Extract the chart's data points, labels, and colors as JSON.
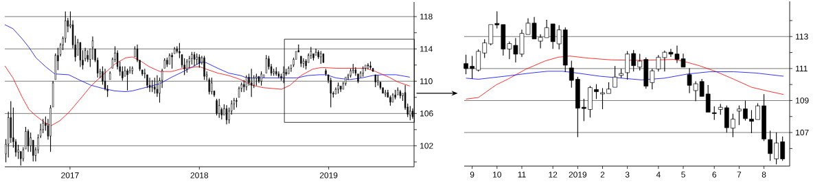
{
  "chart_data": [
    {
      "type": "candlestick",
      "x": [
        "2016-07-04",
        "2016-07-11",
        "2016-07-18",
        "2016-07-25",
        "2016-08-01",
        "2016-08-08",
        "2016-08-15",
        "2016-08-22",
        "2016-08-29",
        "2016-09-05",
        "2016-09-12",
        "2016-09-19",
        "2016-09-26",
        "2016-10-03",
        "2016-10-10",
        "2016-10-17",
        "2016-10-24",
        "2016-10-31",
        "2016-11-07",
        "2016-11-14",
        "2016-11-21",
        "2016-11-28",
        "2016-12-05",
        "2016-12-12",
        "2016-12-19",
        "2016-12-26",
        "2017-01-02",
        "2017-01-09",
        "2017-01-16",
        "2017-01-23",
        "2017-01-30",
        "2017-02-06",
        "2017-02-13",
        "2017-02-20",
        "2017-02-27",
        "2017-03-06",
        "2017-03-13",
        "2017-03-20",
        "2017-03-27",
        "2017-04-03",
        "2017-04-10",
        "2017-04-17",
        "2017-04-24",
        "2017-05-01",
        "2017-05-08",
        "2017-05-15",
        "2017-05-22",
        "2017-05-29",
        "2017-06-05",
        "2017-06-12",
        "2017-06-19",
        "2017-06-26",
        "2017-07-03",
        "2017-07-10",
        "2017-07-17",
        "2017-07-24",
        "2017-07-31",
        "2017-08-07",
        "2017-08-14",
        "2017-08-21",
        "2017-08-28",
        "2017-09-04",
        "2017-09-11",
        "2017-09-18",
        "2017-09-25",
        "2017-10-02",
        "2017-10-09",
        "2017-10-16",
        "2017-10-23",
        "2017-10-30",
        "2017-11-06",
        "2017-11-13",
        "2017-11-20",
        "2017-11-27",
        "2017-12-04",
        "2017-12-11",
        "2017-12-18",
        "2017-12-25",
        "2018-01-01",
        "2018-01-08",
        "2018-01-15",
        "2018-01-22",
        "2018-01-29",
        "2018-02-05",
        "2018-02-12",
        "2018-02-19",
        "2018-02-26",
        "2018-03-05",
        "2018-03-12",
        "2018-03-19",
        "2018-03-26",
        "2018-04-02",
        "2018-04-09",
        "2018-04-16",
        "2018-04-23",
        "2018-04-30",
        "2018-05-07",
        "2018-05-14",
        "2018-05-21",
        "2018-05-28",
        "2018-06-04",
        "2018-06-11",
        "2018-06-18",
        "2018-06-25",
        "2018-07-02",
        "2018-07-09",
        "2018-07-16",
        "2018-07-23",
        "2018-07-30",
        "2018-08-06",
        "2018-08-13",
        "2018-08-20",
        "2018-08-27",
        "2018-09-03",
        "2018-09-10",
        "2018-09-17",
        "2018-09-24",
        "2018-10-01",
        "2018-10-08",
        "2018-10-15",
        "2018-10-22",
        "2018-10-29",
        "2018-11-05",
        "2018-11-12",
        "2018-11-19",
        "2018-11-26",
        "2018-12-03",
        "2018-12-10",
        "2018-12-17",
        "2018-12-24",
        "2018-12-31",
        "2019-01-07",
        "2019-01-14",
        "2019-01-21",
        "2019-01-28",
        "2019-02-04",
        "2019-02-11",
        "2019-02-18",
        "2019-02-25",
        "2019-03-04",
        "2019-03-11",
        "2019-03-18",
        "2019-03-25",
        "2019-04-01",
        "2019-04-08",
        "2019-04-15",
        "2019-04-22",
        "2019-04-29",
        "2019-05-06",
        "2019-05-13",
        "2019-05-20",
        "2019-05-27",
        "2019-06-03",
        "2019-06-10",
        "2019-06-17",
        "2019-06-24",
        "2019-07-01",
        "2019-07-08",
        "2019-07-15",
        "2019-07-22",
        "2019-07-29",
        "2019-08-05",
        "2019-08-12",
        "2019-08-19",
        "2019-08-26"
      ],
      "ohlc": [
        [
          101.0,
          102.8,
          100.0,
          102.2
        ],
        [
          102.2,
          106.2,
          100.6,
          105.5
        ],
        [
          105.5,
          107.5,
          102.4,
          103.0
        ],
        [
          103.0,
          106.7,
          101.8,
          102.5
        ],
        [
          102.5,
          102.8,
          100.7,
          101.2
        ],
        [
          101.2,
          102.1,
          100.4,
          101.5
        ],
        [
          101.3,
          101.4,
          99.6,
          100.4
        ],
        [
          100.4,
          101.8,
          100.1,
          101.5
        ],
        [
          101.6,
          104.3,
          101.6,
          103.8
        ],
        [
          103.8,
          104.0,
          101.3,
          102.0
        ],
        [
          102.0,
          103.6,
          101.3,
          103.0
        ],
        [
          102.7,
          102.7,
          100.1,
          100.8
        ],
        [
          100.8,
          101.8,
          100.1,
          101.5
        ],
        [
          101.5,
          103.4,
          101.1,
          103.0
        ],
        [
          103.2,
          104.7,
          103.0,
          104.0
        ],
        [
          104.0,
          105.3,
          103.6,
          104.8
        ],
        [
          104.8,
          105.6,
          103.9,
          104.5
        ],
        [
          104.5,
          105.3,
          102.8,
          103.2
        ],
        [
          103.2,
          107.0,
          101.3,
          106.7
        ],
        [
          106.8,
          110.0,
          106.8,
          109.8
        ],
        [
          110.2,
          113.4,
          110.2,
          113.2
        ],
        [
          113.2,
          114.1,
          111.4,
          112.5
        ],
        [
          113.3,
          114.7,
          113.1,
          114.5
        ],
        [
          114.5,
          115.5,
          113.9,
          115.3
        ],
        [
          115.3,
          118.6,
          114.8,
          117.5
        ],
        [
          117.5,
          117.8,
          116.1,
          116.8
        ],
        [
          116.8,
          118.6,
          116.6,
          117.0
        ],
        [
          117.0,
          117.5,
          114.1,
          114.5
        ],
        [
          114.5,
          115.6,
          112.5,
          113.0
        ],
        [
          113.2,
          115.2,
          113.2,
          114.8
        ],
        [
          114.8,
          114.9,
          111.8,
          112.6
        ],
        [
          112.6,
          113.8,
          111.5,
          112.0
        ],
        [
          112.8,
          114.1,
          112.5,
          113.8
        ],
        [
          113.2,
          113.8,
          112.4,
          112.7
        ],
        [
          112.7,
          114.1,
          111.8,
          114.0
        ],
        [
          114.2,
          115.5,
          112.7,
          115.0
        ],
        [
          114.0,
          114.1,
          112.4,
          112.6
        ],
        [
          112.6,
          112.9,
          110.5,
          111.0
        ],
        [
          111.0,
          111.5,
          110.4,
          111.2
        ],
        [
          111.2,
          111.8,
          109.6,
          110.0
        ],
        [
          110.0,
          111.5,
          108.9,
          109.1
        ],
        [
          109.0,
          109.5,
          108.1,
          108.8
        ],
        [
          110.2,
          111.2,
          110.1,
          111.0
        ],
        [
          111.6,
          112.9,
          111.5,
          112.7
        ],
        [
          112.7,
          114.3,
          112.4,
          113.5
        ],
        [
          113.5,
          113.8,
          111.5,
          111.8
        ],
        [
          111.8,
          112.4,
          110.7,
          111.2
        ],
        [
          111.2,
          111.8,
          110.1,
          110.4
        ],
        [
          110.6,
          111.8,
          110.6,
          111.3
        ],
        [
          111.3,
          111.5,
          108.9,
          110.8
        ],
        [
          111.0,
          111.8,
          110.9,
          111.3
        ],
        [
          111.3,
          111.8,
          110.9,
          111.6
        ],
        [
          113.0,
          114.3,
          112.9,
          114.0
        ],
        [
          114.0,
          114.5,
          112.4,
          112.6
        ],
        [
          112.6,
          112.7,
          111.3,
          111.5
        ],
        [
          111.4,
          111.5,
          110.7,
          110.9
        ],
        [
          110.9,
          111.5,
          110.4,
          111.0
        ],
        [
          110.8,
          110.9,
          109.2,
          109.5
        ],
        [
          109.5,
          110.4,
          108.7,
          109.2
        ],
        [
          109.2,
          110.1,
          108.7,
          109.3
        ],
        [
          109.3,
          110.4,
          108.5,
          109.0
        ],
        [
          109.0,
          110.7,
          108.1,
          108.5
        ],
        [
          108.5,
          110.4,
          107.4,
          110.1
        ],
        [
          110.1,
          111.5,
          109.2,
          111.3
        ],
        [
          111.6,
          112.8,
          111.5,
          112.6
        ],
        [
          112.6,
          112.9,
          111.8,
          112.1
        ],
        [
          112.1,
          113.4,
          112.1,
          113.2
        ],
        [
          113.2,
          113.5,
          111.6,
          113.0
        ],
        [
          113.4,
          114.2,
          113.3,
          114.0
        ],
        [
          114.0,
          114.3,
          113.5,
          113.7
        ],
        [
          113.7,
          114.7,
          112.9,
          113.5
        ],
        [
          113.3,
          113.4,
          111.7,
          112.0
        ],
        [
          112.0,
          112.8,
          110.8,
          111.5
        ],
        [
          111.5,
          112.7,
          111.1,
          112.4
        ],
        [
          112.4,
          113.1,
          111.7,
          112.8
        ],
        [
          112.8,
          113.6,
          112.1,
          113.3
        ],
        [
          113.3,
          113.6,
          111.9,
          112.7
        ],
        [
          112.7,
          113.4,
          112.1,
          113.0
        ],
        [
          113.0,
          113.3,
          111.7,
          112.2
        ],
        [
          112.3,
          113.1,
          112.1,
          112.9
        ],
        [
          112.9,
          113.1,
          110.2,
          110.6
        ],
        [
          110.6,
          111.2,
          110.1,
          110.8
        ],
        [
          110.2,
          110.4,
          108.4,
          108.7
        ],
        [
          108.7,
          110.4,
          108.4,
          109.8
        ],
        [
          108.8,
          108.9,
          108.1,
          108.3
        ],
        [
          107.6,
          107.8,
          105.8,
          106.0
        ],
        [
          106.0,
          107.8,
          105.5,
          107.0
        ],
        [
          106.5,
          106.7,
          105.3,
          105.8
        ],
        [
          105.8,
          107.1,
          105.7,
          106.6
        ],
        [
          106.6,
          107.0,
          104.7,
          105.2
        ],
        [
          105.2,
          106.7,
          104.8,
          106.3
        ],
        [
          106.3,
          107.6,
          105.9,
          107.2
        ],
        [
          107.2,
          107.9,
          106.5,
          107.6
        ],
        [
          107.6,
          107.9,
          106.8,
          107.5
        ],
        [
          108.0,
          109.3,
          107.9,
          109.1
        ],
        [
          109.1,
          109.8,
          108.7,
          109.6
        ],
        [
          109.6,
          110.1,
          108.7,
          109.3
        ],
        [
          109.3,
          110.7,
          108.9,
          110.5
        ],
        [
          110.5,
          110.9,
          109.5,
          109.8
        ],
        [
          109.8,
          111.5,
          108.1,
          109.5
        ],
        [
          109.5,
          110.7,
          109.2,
          110.4
        ],
        [
          110.4,
          110.9,
          109.5,
          110.6
        ],
        [
          110.6,
          110.7,
          109.8,
          110.0
        ],
        [
          110.0,
          111.2,
          109.5,
          110.9
        ],
        [
          110.5,
          110.9,
          110.4,
          110.8
        ],
        [
          111.0,
          113.2,
          111.0,
          112.8
        ],
        [
          112.8,
          113.1,
          111.5,
          111.8
        ],
        [
          111.8,
          112.1,
          110.7,
          111.0
        ],
        [
          111.0,
          111.5,
          110.7,
          111.2
        ],
        [
          111.2,
          111.7,
          110.7,
          110.9
        ],
        [
          110.9,
          111.2,
          110.4,
          110.6
        ],
        [
          110.6,
          110.9,
          110.1,
          110.4
        ],
        [
          110.4,
          111.8,
          109.8,
          111.1
        ],
        [
          111.1,
          111.5,
          110.7,
          110.9
        ],
        [
          110.9,
          111.8,
          110.9,
          111.6
        ],
        [
          111.6,
          112.1,
          111.2,
          112.0
        ],
        [
          112.0,
          112.9,
          111.8,
          112.7
        ],
        [
          112.7,
          113.8,
          112.7,
          113.7
        ],
        [
          113.8,
          114.5,
          113.5,
          113.6
        ],
        [
          113.1,
          113.2,
          111.8,
          112.2
        ],
        [
          112.2,
          112.8,
          111.7,
          112.5
        ],
        [
          112.5,
          112.7,
          111.5,
          111.9
        ],
        [
          112.3,
          113.4,
          112.2,
          113.2
        ],
        [
          113.2,
          114.2,
          112.8,
          113.7
        ],
        [
          113.4,
          113.5,
          112.6,
          112.9
        ],
        [
          113.2,
          114.0,
          113.1,
          113.6
        ],
        [
          113.6,
          113.8,
          112.8,
          113.0
        ],
        [
          113.0,
          113.7,
          112.2,
          113.4
        ],
        [
          113.4,
          113.5,
          112.2,
          112.3
        ],
        [
          111.3,
          111.5,
          110.7,
          110.9
        ],
        [
          110.8,
          110.9,
          109.8,
          110.1
        ],
        [
          110.1,
          110.4,
          106.8,
          108.5
        ],
        [
          108.5,
          108.7,
          108.0,
          108.4
        ],
        [
          108.4,
          109.2,
          108.4,
          109.0
        ],
        [
          109.0,
          109.8,
          108.5,
          109.5
        ],
        [
          109.4,
          109.5,
          108.7,
          109.0
        ],
        [
          109.0,
          109.9,
          108.9,
          109.7
        ],
        [
          109.7,
          110.6,
          109.5,
          110.5
        ],
        [
          110.5,
          110.9,
          110.2,
          110.7
        ],
        [
          110.7,
          111.5,
          110.5,
          111.3
        ],
        [
          111.3,
          112.1,
          111.0,
          111.4
        ],
        [
          111.4,
          111.7,
          110.7,
          111.0
        ],
        [
          110.9,
          110.9,
          109.8,
          110.0
        ],
        [
          110.5,
          111.2,
          110.4,
          111.0
        ],
        [
          111.0,
          111.8,
          110.6,
          111.6
        ],
        [
          111.6,
          112.1,
          111.3,
          112.0
        ],
        [
          112.0,
          112.2,
          111.5,
          111.9
        ],
        [
          111.9,
          112.4,
          111.5,
          111.7
        ],
        [
          111.6,
          111.7,
          111.1,
          111.2
        ],
        [
          110.8,
          110.9,
          109.3,
          109.9
        ],
        [
          109.9,
          110.7,
          109.5,
          110.1
        ],
        [
          109.9,
          110.0,
          109.0,
          109.2
        ],
        [
          109.2,
          109.3,
          108.4,
          108.5
        ],
        [
          108.4,
          108.9,
          108.1,
          108.6
        ],
        [
          108.6,
          108.9,
          107.9,
          108.0
        ],
        [
          108.0,
          108.2,
          107.0,
          107.4
        ],
        [
          107.4,
          108.5,
          107.3,
          108.3
        ],
        [
          108.3,
          108.9,
          107.8,
          108.0
        ],
        [
          108.3,
          109.2,
          108.2,
          108.9
        ],
        [
          108.7,
          108.9,
          107.9,
          108.2
        ],
        [
          108.2,
          108.6,
          107.6,
          108.5
        ],
        [
          108.6,
          109.5,
          106.5,
          106.7
        ],
        [
          106.8,
          107.2,
          105.6,
          105.9
        ],
        [
          105.8,
          106.9,
          105.2,
          106.3
        ],
        [
          106.3,
          106.6,
          105.4,
          105.6
        ]
      ],
      "series": [
        {
          "type": "line",
          "color": "#0000ff",
          "x": [
            "2016-07-01",
            "2016-07-24",
            "2016-08-18",
            "2016-09-07",
            "2016-09-27",
            "2016-10-24",
            "2016-11-19",
            "2016-12-28",
            "2017-01-30",
            "2017-03-01",
            "2017-04-04",
            "2017-05-07",
            "2017-06-07",
            "2017-06-26",
            "2017-07-23",
            "2017-09-12",
            "2017-10-15",
            "2017-11-17",
            "2017-12-18",
            "2018-01-07",
            "2018-01-20",
            "2018-02-22",
            "2018-03-25",
            "2018-04-27",
            "2018-05-16",
            "2018-06-30",
            "2018-10-02",
            "2018-11-03",
            "2018-12-06",
            "2018-12-25",
            "2019-01-22",
            "2019-03-01",
            "2019-04-04",
            "2019-05-05",
            "2019-06-01",
            "2019-07-10",
            "2019-08-18"
          ],
          "values": [
            117.0,
            116.5,
            115.3,
            114.2,
            112.9,
            111.8,
            110.9,
            110.8,
            110.1,
            109.5,
            109.1,
            108.8,
            108.7,
            108.8,
            109.1,
            109.7,
            110.5,
            111.2,
            111.9,
            112.4,
            112.3,
            111.6,
            111.0,
            110.7,
            110.4,
            110.4,
            110.4,
            110.7,
            110.8,
            110.8,
            110.4,
            110.2,
            110.4,
            110.7,
            110.8,
            110.8,
            110.5
          ]
        },
        {
          "type": "line",
          "color": "#ff0000",
          "x": [
            "2016-07-01",
            "2016-07-24",
            "2016-08-18",
            "2016-09-07",
            "2016-09-27",
            "2016-10-24",
            "2016-11-09",
            "2016-12-03",
            "2016-12-28",
            "2017-01-30",
            "2017-03-01",
            "2017-04-04",
            "2017-05-07",
            "2017-06-07",
            "2017-06-26",
            "2017-07-23",
            "2017-08-12",
            "2017-09-12",
            "2017-10-15",
            "2017-11-17",
            "2018-01-01",
            "2018-01-20",
            "2018-02-22",
            "2018-03-25",
            "2018-04-27",
            "2018-05-30",
            "2018-06-30",
            "2018-08-21",
            "2018-09-14",
            "2018-10-15",
            "2018-11-17",
            "2018-12-12",
            "2019-01-22",
            "2019-03-01",
            "2019-04-16",
            "2019-05-13",
            "2019-06-20",
            "2019-07-15",
            "2019-08-18"
          ],
          "values": [
            111.9,
            110.4,
            108.1,
            106.5,
            105.7,
            104.8,
            104.5,
            105.1,
            106.1,
            107.8,
            109.4,
            110.8,
            112.1,
            112.9,
            113.0,
            112.4,
            111.8,
            111.2,
            111.2,
            111.6,
            111.8,
            111.5,
            111.0,
            110.7,
            110.2,
            109.5,
            109.2,
            109.0,
            109.5,
            110.7,
            111.5,
            111.7,
            111.6,
            111.6,
            111.6,
            111.2,
            110.5,
            109.9,
            109.4
          ]
        }
      ],
      "xlim": [
        "2016-07-01",
        "2019-08-30"
      ],
      "ylim": [
        99.4,
        119.8
      ],
      "xticks": [
        {
          "value": "2017-01-01",
          "label": "2017"
        },
        {
          "value": "2018-01-01",
          "label": "2018"
        },
        {
          "value": "2019-01-01",
          "label": "2019"
        }
      ],
      "yticks": [
        {
          "value": 100,
          "label": null
        },
        102,
        {
          "value": 104,
          "label": null
        },
        106,
        {
          "value": 108,
          "label": null
        },
        110,
        {
          "value": 112,
          "label": null
        },
        114,
        {
          "value": 116,
          "label": null
        },
        118
      ],
      "grid": "y"
    },
    {
      "type": "candlestick",
      "x": [
        "2018-08-31",
        "2018-09-07",
        "2018-09-14",
        "2018-09-21",
        "2018-09-28",
        "2018-10-05",
        "2018-10-12",
        "2018-10-19",
        "2018-10-26",
        "2018-11-02",
        "2018-11-09",
        "2018-11-16",
        "2018-11-23",
        "2018-11-30",
        "2018-12-07",
        "2018-12-14",
        "2018-12-21",
        "2018-12-28",
        "2019-01-04",
        "2019-01-11",
        "2019-01-18",
        "2019-01-25",
        "2019-02-01",
        "2019-02-08",
        "2019-02-15",
        "2019-02-22",
        "2019-03-01",
        "2019-03-08",
        "2019-03-15",
        "2019-03-22",
        "2019-03-29",
        "2019-04-05",
        "2019-04-12",
        "2019-04-19",
        "2019-04-26",
        "2019-05-03",
        "2019-05-10",
        "2019-05-17",
        "2019-05-24",
        "2019-05-31",
        "2019-06-07",
        "2019-06-14",
        "2019-06-21",
        "2019-06-28",
        "2019-07-05",
        "2019-07-12",
        "2019-07-19",
        "2019-07-26",
        "2019-08-02",
        "2019-08-09",
        "2019-08-16",
        "2019-08-23"
      ],
      "ohlc": [
        [
          111.31,
          111.85,
          110.66,
          111.0
        ],
        [
          111.14,
          111.78,
          110.37,
          111.0
        ],
        [
          110.9,
          112.18,
          110.83,
          112.08
        ],
        [
          111.97,
          112.82,
          111.68,
          112.61
        ],
        [
          112.54,
          113.77,
          112.47,
          113.75
        ],
        [
          113.82,
          114.56,
          113.53,
          113.73
        ],
        [
          113.75,
          113.8,
          111.83,
          112.22
        ],
        [
          112.22,
          112.68,
          111.61,
          112.56
        ],
        [
          112.45,
          112.89,
          111.4,
          111.9
        ],
        [
          111.9,
          113.42,
          111.75,
          113.2
        ],
        [
          113.13,
          114.13,
          113.1,
          113.84
        ],
        [
          113.84,
          114.21,
          112.82,
          112.85
        ],
        [
          112.71,
          113.13,
          112.28,
          112.96
        ],
        [
          112.93,
          114.03,
          112.89,
          113.56
        ],
        [
          113.79,
          113.82,
          112.25,
          112.68
        ],
        [
          112.54,
          113.7,
          112.22,
          113.42
        ],
        [
          113.42,
          113.56,
          110.8,
          111.21
        ],
        [
          111.04,
          111.47,
          109.83,
          110.26
        ],
        [
          110.33,
          110.47,
          106.73,
          108.52
        ],
        [
          108.58,
          109.09,
          107.73,
          108.5
        ],
        [
          108.44,
          109.9,
          107.96,
          109.81
        ],
        [
          109.69,
          110.0,
          109.12,
          109.55
        ],
        [
          109.41,
          109.76,
          108.48,
          109.49
        ],
        [
          109.44,
          110.12,
          109.41,
          109.72
        ],
        [
          109.83,
          111.14,
          109.83,
          110.47
        ],
        [
          110.57,
          110.97,
          110.43,
          110.69
        ],
        [
          110.74,
          112.08,
          110.33,
          111.91
        ],
        [
          111.94,
          112.14,
          110.83,
          111.18
        ],
        [
          111.09,
          111.9,
          110.9,
          111.47
        ],
        [
          111.57,
          111.68,
          109.76,
          109.9
        ],
        [
          110.12,
          110.97,
          109.72,
          110.86
        ],
        [
          110.97,
          111.83,
          110.83,
          111.71
        ],
        [
          111.68,
          112.11,
          110.83,
          112.02
        ],
        [
          112.02,
          112.22,
          111.75,
          111.9
        ],
        [
          111.91,
          112.42,
          111.37,
          111.57
        ],
        [
          111.61,
          111.91,
          111.04,
          111.09
        ],
        [
          110.62,
          111.0,
          109.48,
          109.95
        ],
        [
          109.62,
          110.19,
          108.98,
          110.05
        ],
        [
          110.19,
          110.33,
          109.2,
          109.26
        ],
        [
          109.41,
          109.95,
          108.27,
          108.27
        ],
        [
          108.24,
          108.62,
          107.81,
          108.18
        ],
        [
          108.44,
          108.77,
          108.13,
          108.58
        ],
        [
          108.55,
          108.67,
          107.02,
          107.3
        ],
        [
          107.27,
          108.16,
          106.73,
          107.84
        ],
        [
          108.34,
          108.67,
          107.49,
          108.47
        ],
        [
          108.48,
          108.98,
          107.77,
          107.87
        ],
        [
          107.84,
          108.38,
          106.98,
          107.7
        ],
        [
          107.81,
          108.81,
          107.77,
          108.67
        ],
        [
          108.67,
          109.38,
          106.49,
          106.59
        ],
        [
          106.56,
          107.1,
          105.25,
          105.68
        ],
        [
          105.35,
          106.99,
          105.03,
          106.35
        ],
        [
          106.42,
          106.73,
          105.25,
          105.35
        ]
      ],
      "series": [
        {
          "type": "line",
          "color": "#ff0000",
          "x": [
            "2018-08-31",
            "2018-09-14",
            "2018-10-04",
            "2018-10-17",
            "2018-11-07",
            "2018-11-28",
            "2018-12-13",
            "2018-12-26",
            "2019-01-16",
            "2019-02-11",
            "2019-03-17",
            "2019-04-22",
            "2019-05-02",
            "2019-05-21",
            "2019-06-08",
            "2019-06-29",
            "2019-07-19",
            "2019-08-07",
            "2019-08-24"
          ],
          "values": [
            109.09,
            109.19,
            109.98,
            110.33,
            110.97,
            111.47,
            111.71,
            111.78,
            111.65,
            111.54,
            111.51,
            111.57,
            111.47,
            111.18,
            110.83,
            110.33,
            109.83,
            109.58,
            109.38
          ]
        },
        {
          "type": "line",
          "color": "#0000ff",
          "x": [
            "2018-08-31",
            "2018-09-14",
            "2018-10-17",
            "2018-11-12",
            "2018-12-01",
            "2018-12-18",
            "2019-01-03",
            "2019-01-29",
            "2019-03-17",
            "2019-04-12",
            "2019-05-08",
            "2019-06-02",
            "2019-06-29",
            "2019-07-24",
            "2019-08-24"
          ],
          "values": [
            110.4,
            110.33,
            110.54,
            110.72,
            110.83,
            110.83,
            110.72,
            110.52,
            110.29,
            110.4,
            110.66,
            110.8,
            110.8,
            110.72,
            110.52
          ]
        }
      ],
      "xlim": [
        "2018-08-29",
        "2019-08-31"
      ],
      "ylim": [
        104.9,
        115.2
      ],
      "xticks": [
        {
          "value": "2018-09-07",
          "label": "9"
        },
        {
          "value": "2018-10-05",
          "label": "10"
        },
        {
          "value": "2018-11-02",
          "label": "11"
        },
        {
          "value": "2018-12-07",
          "label": "12"
        },
        {
          "value": "2019-01-04",
          "label": "2019"
        },
        {
          "value": "2019-02-01",
          "label": "2"
        },
        {
          "value": "2019-03-01",
          "label": "3"
        },
        {
          "value": "2019-04-05",
          "label": "4"
        },
        {
          "value": "2019-05-03",
          "label": "5"
        },
        {
          "value": "2019-06-07",
          "label": "6"
        },
        {
          "value": "2019-07-05",
          "label": "7"
        },
        {
          "value": "2019-08-02",
          "label": "8"
        }
      ],
      "yticks": [
        {
          "value": 106,
          "label": null
        },
        107,
        {
          "value": 108,
          "label": null
        },
        109,
        {
          "value": 110,
          "label": null
        },
        111,
        {
          "value": 112,
          "label": null
        },
        113,
        {
          "value": 114,
          "label": null
        }
      ],
      "grid": "y"
    }
  ]
}
